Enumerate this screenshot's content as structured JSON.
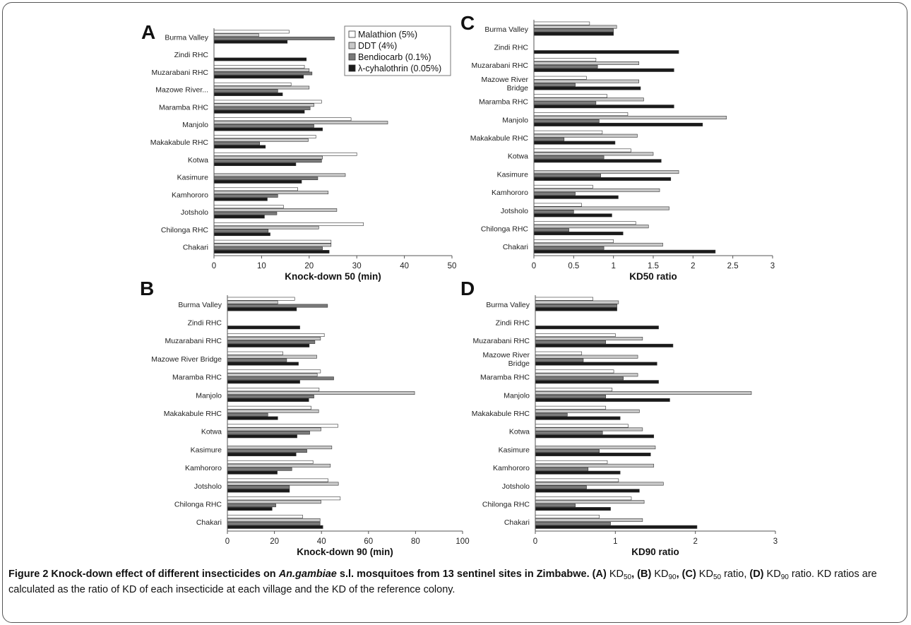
{
  "sites": [
    "Burma Valley",
    "Zindi RHC",
    "Muzarabani RHC",
    "Mazowe River...",
    "Maramba RHC",
    "Manjolo",
    "Makakabule RHC",
    "Kotwa",
    "Kasimure",
    "Kamhororo",
    "Jotsholo",
    "Chilonga RHC",
    "Chakari"
  ],
  "series_meta": [
    {
      "name": "Malathion (5%)",
      "color": "#ffffff"
    },
    {
      "name": "DDT (4%)",
      "color": "#c8c8c8"
    },
    {
      "name": "Bendiocarb (0.1%)",
      "color": "#7a7a7a"
    },
    {
      "name": "λ-cyhalothrin (0.05%)",
      "color": "#1a1a1a"
    }
  ],
  "chart_data": [
    {
      "type": "bar",
      "panel": "A",
      "orientation": "horizontal",
      "xlabel": "Knock-down 50 (min)",
      "xlim": [
        0,
        50
      ],
      "xticks": [
        0,
        10,
        20,
        30,
        40,
        50
      ],
      "categories": [
        "Burma Valley",
        "Zindi RHC",
        "Muzarabani RHC",
        "Mazowe River...",
        "Maramba RHC",
        "Manjolo",
        "Makakabule RHC",
        "Kotwa",
        "Kasimure",
        "Kamhororo",
        "Jotsholo",
        "Chilonga RHC",
        "Chakari"
      ],
      "series": [
        {
          "name": "Malathion (5%)",
          "values": [
            15.8,
            0,
            19,
            16.2,
            22.6,
            28.8,
            21.4,
            30,
            0,
            17.6,
            14.6,
            31.4,
            24.6
          ]
        },
        {
          "name": "DDT (4%)",
          "values": [
            9.4,
            0,
            20,
            20,
            21,
            36.5,
            19.8,
            22.8,
            27.6,
            24,
            25.8,
            22,
            24.6
          ]
        },
        {
          "name": "Bendiocarb (0.1%)",
          "values": [
            25.3,
            0,
            20.6,
            13.4,
            20.2,
            21,
            9.6,
            22.6,
            21.8,
            13.4,
            13.2,
            11.4,
            22.8
          ]
        },
        {
          "name": "λ-cyhalothrin (0.05%)",
          "values": [
            15.4,
            19.4,
            18.8,
            14.4,
            19,
            22.8,
            10.8,
            17.2,
            18.4,
            11.2,
            10.6,
            11.8,
            24.2
          ]
        }
      ]
    },
    {
      "type": "bar",
      "panel": "B",
      "orientation": "horizontal",
      "xlabel": "Knock-down 90 (min)",
      "xlim": [
        0,
        100
      ],
      "xticks": [
        0,
        20,
        40,
        60,
        80,
        100
      ],
      "categories": [
        "Burma Valley",
        "Zindi RHC",
        "Muzarabani RHC",
        "Mazowe River Bridge",
        "Maramba RHC",
        "Manjolo",
        "Makakabule RHC",
        "Kotwa",
        "Kasimure",
        "Kamhororo",
        "Jotsholo",
        "Chilonga RHC",
        "Chakari"
      ],
      "series": [
        {
          "name": "Malathion (5%)",
          "values": [
            28.6,
            0,
            41.2,
            23.6,
            39.6,
            39,
            35.6,
            47,
            0,
            36.4,
            42.8,
            48,
            32
          ]
        },
        {
          "name": "DDT (4%)",
          "values": [
            21.4,
            0,
            39.6,
            38,
            38.2,
            79.6,
            38.8,
            39.8,
            44.4,
            43.8,
            47.2,
            39.8,
            39.4
          ]
        },
        {
          "name": "Bendiocarb (0.1%)",
          "values": [
            42.6,
            0,
            37.2,
            25.2,
            45.2,
            36.8,
            17.2,
            35,
            33.8,
            27.4,
            26.4,
            20.6,
            39.4
          ]
        },
        {
          "name": "λ-cyhalothrin (0.05%)",
          "values": [
            29.4,
            30.8,
            34.8,
            30.2,
            30.8,
            34.6,
            21.4,
            29.6,
            29.2,
            21.2,
            26.4,
            19,
            40.6
          ]
        }
      ]
    },
    {
      "type": "bar",
      "panel": "C",
      "orientation": "horizontal",
      "xlabel": "KD50 ratio",
      "xlim": [
        0,
        3
      ],
      "xticks": [
        0,
        0.5,
        1,
        1.5,
        2,
        2.5,
        3
      ],
      "categories": [
        "Burma Valley",
        "Zindi RHC",
        "Muzarabani RHC",
        "Mazowe River Bridge",
        "Maramba RHC",
        "Manjolo",
        "Makakabule RHC",
        "Kotwa",
        "Kasimure",
        "Kamhororo",
        "Jotsholo",
        "Chilonga RHC",
        "Chakari"
      ],
      "series": [
        {
          "name": "Malathion (5%)",
          "values": [
            0.7,
            0,
            0.78,
            0.66,
            0.92,
            1.18,
            0.86,
            1.22,
            0,
            0.74,
            0.6,
            1.28,
            1.0
          ]
        },
        {
          "name": "DDT (4%)",
          "values": [
            1.04,
            0,
            1.32,
            1.32,
            1.38,
            2.42,
            1.3,
            1.5,
            1.82,
            1.58,
            1.7,
            1.44,
            1.62
          ]
        },
        {
          "name": "Bendiocarb (0.1%)",
          "values": [
            1.0,
            0,
            0.8,
            0.52,
            0.78,
            0.82,
            0.38,
            0.88,
            0.84,
            0.52,
            0.5,
            0.44,
            0.88
          ]
        },
        {
          "name": "λ-cyhalothrin (0.05%)",
          "values": [
            1.0,
            1.82,
            1.76,
            1.34,
            1.76,
            2.12,
            1.02,
            1.6,
            1.72,
            1.06,
            0.98,
            1.12,
            2.28
          ]
        }
      ]
    },
    {
      "type": "bar",
      "panel": "D",
      "orientation": "horizontal",
      "xlabel": "KD90 ratio",
      "xlim": [
        0,
        3
      ],
      "xticks": [
        0,
        1,
        2,
        3
      ],
      "categories": [
        "Burma Valley",
        "Zindi RHC",
        "Muzarabani RHC",
        "Mazowe River Bridge",
        "Maramba RHC",
        "Manjolo",
        "Makakabule RHC",
        "Kotwa",
        "Kasimure",
        "Kamhororo",
        "Jotsholo",
        "Chilonga RHC",
        "Chakari"
      ],
      "series": [
        {
          "name": "Malathion (5%)",
          "values": [
            0.72,
            0,
            1.0,
            0.58,
            0.98,
            0.96,
            0.88,
            1.16,
            0,
            0.9,
            1.04,
            1.2,
            0.8
          ]
        },
        {
          "name": "DDT (4%)",
          "values": [
            1.04,
            0,
            1.34,
            1.28,
            1.28,
            2.7,
            1.3,
            1.34,
            1.5,
            1.48,
            1.6,
            1.36,
            1.34
          ]
        },
        {
          "name": "Bendiocarb (0.1%)",
          "values": [
            1.02,
            0,
            0.88,
            0.6,
            1.1,
            0.88,
            0.4,
            0.84,
            0.8,
            0.66,
            0.64,
            0.5,
            0.94
          ]
        },
        {
          "name": "λ-cyhalothrin (0.05%)",
          "values": [
            1.02,
            1.54,
            1.72,
            1.52,
            1.54,
            1.68,
            1.06,
            1.48,
            1.44,
            1.06,
            1.3,
            0.94,
            2.02
          ]
        }
      ]
    }
  ],
  "caption": {
    "title": "Figure 2 Knock-down effect of different insecticides on ",
    "species": "An.gambiae",
    "title_end": " s.l. mosquitoes from 13 sentinel sites in Zimbabwe.",
    "seg1": "(A)",
    "t1": " KD",
    "s1": "50",
    "seg2": ", (B)",
    "t2": " KD",
    "s2": "90",
    "seg3": ", (C)",
    "t3": " KD",
    "s3": "50",
    "t3b": " ratio, ",
    "seg4": "(D)",
    "t4": " KD",
    "s4": "90",
    "t4b": " ratio. KD ratios are calculated as the ratio of KD of each insecticide at each village and the KD of the reference colony."
  }
}
